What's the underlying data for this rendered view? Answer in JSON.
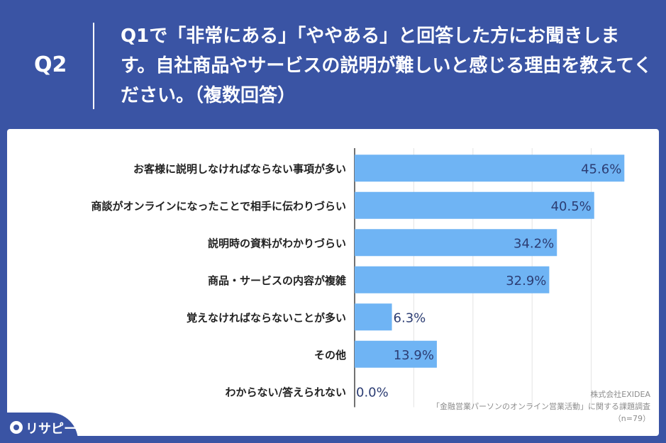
{
  "header": {
    "qnum": "Q2",
    "question": "Q1で「非常にある」「ややある」と回答した方にお聞きします。自社商品やサービスの説明が難しいと感じる理由を教えてください。（複数回答）"
  },
  "footnote": {
    "company": "株式会社EXIDEA",
    "survey": "「金融営業パーソンのオンライン営業活動」に関する課題調査",
    "n": "（n=79）"
  },
  "logo": {
    "text": "リサピー"
  },
  "colors": {
    "background": "#3a54a4",
    "bar": "#6fb4f4",
    "label": "#2c3d73",
    "axis": "#444444"
  },
  "chart_data": {
    "type": "bar",
    "orientation": "horizontal",
    "categories": [
      "お客様に説明しなければならない事項が多い",
      "商談がオンラインになったことで相手に伝わりづらい",
      "説明時の資料がわかりづらい",
      "商品・サービスの内容が複雑",
      "覚えなければならないことが多い",
      "その他",
      "わからない/答えられない"
    ],
    "values": [
      45.6,
      40.5,
      34.2,
      32.9,
      6.3,
      13.9,
      0.0
    ],
    "value_labels": [
      "45.6%",
      "40.5%",
      "34.2%",
      "32.9%",
      "6.3%",
      "13.9%",
      "0.0%"
    ],
    "xlim": [
      0,
      50
    ],
    "unit": "%",
    "grid": true
  }
}
